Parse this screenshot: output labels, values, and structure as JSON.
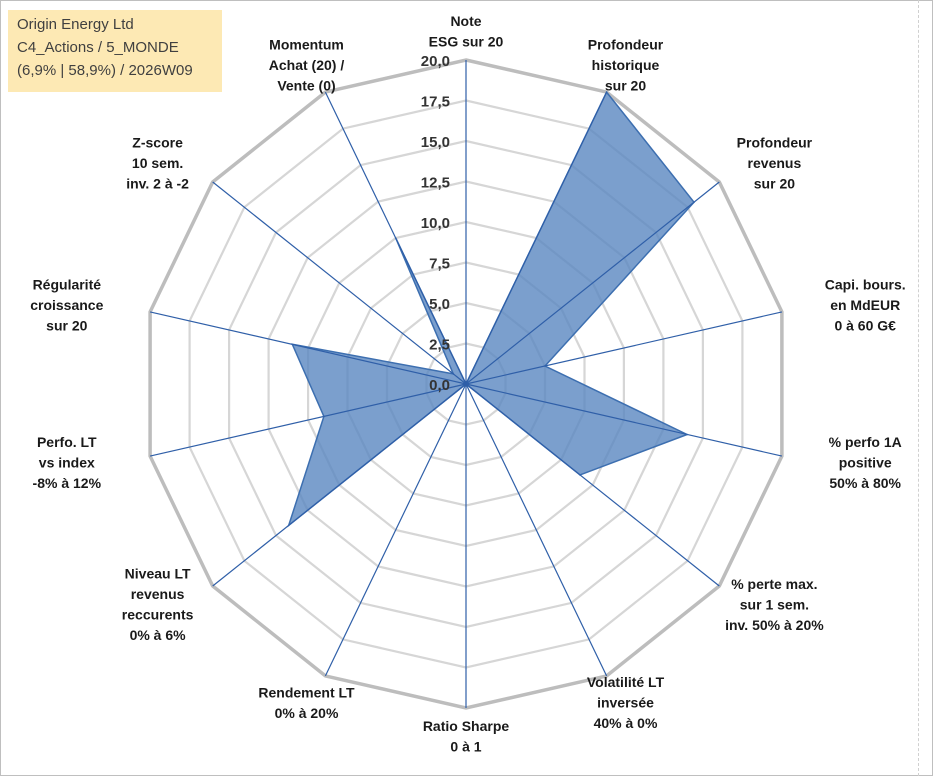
{
  "info": {
    "name": "Origin Energy Ltd",
    "category": "C4_Actions / 5_MONDE",
    "stats": "(6,9% | 58,9%) / 2026W09"
  },
  "chart_data": {
    "type": "radar",
    "title": "",
    "range": [
      0,
      20
    ],
    "ticks": [
      "0,0",
      "2,5",
      "5,0",
      "7,5",
      "10,0",
      "12,5",
      "15,0",
      "17,5",
      "20,0"
    ],
    "series": [
      {
        "name": "Origin Energy Ltd",
        "color": "#5a87c0",
        "values": [
          0,
          20,
          18,
          5,
          14,
          9,
          0,
          0,
          0,
          14,
          9,
          11,
          1,
          10
        ]
      }
    ],
    "axes": [
      {
        "label": [
          "Note",
          "ESG sur 20"
        ]
      },
      {
        "label": [
          "Profondeur",
          "historique",
          "sur 20"
        ]
      },
      {
        "label": [
          "Profondeur",
          "revenus",
          "sur 20"
        ]
      },
      {
        "label": [
          "Capi. bours.",
          "en MdEUR",
          "0 à 60 G€"
        ]
      },
      {
        "label": [
          "% perfo 1A",
          "positive",
          "50% à 80%"
        ]
      },
      {
        "label": [
          "% perte max.",
          "sur 1 sem.",
          "inv. 50% à 20%"
        ]
      },
      {
        "label": [
          "Volatilité LT",
          "inversée",
          "40% à 0%"
        ]
      },
      {
        "label": [
          "Ratio Sharpe",
          "0 à 1"
        ]
      },
      {
        "label": [
          "Rendement LT",
          "0% à 20%"
        ]
      },
      {
        "label": [
          "Niveau LT",
          "revenus",
          "reccurents",
          "0% à 6%"
        ]
      },
      {
        "label": [
          "Perfo. LT",
          "vs index",
          "-8% à 12%"
        ]
      },
      {
        "label": [
          "Régularité",
          "croissance",
          "sur 20"
        ]
      },
      {
        "label": [
          "Z-score",
          "10 sem.",
          "inv. 2 à -2"
        ]
      },
      {
        "label": [
          "Momentum",
          "Achat (20) /",
          "Vente (0)"
        ]
      }
    ]
  }
}
